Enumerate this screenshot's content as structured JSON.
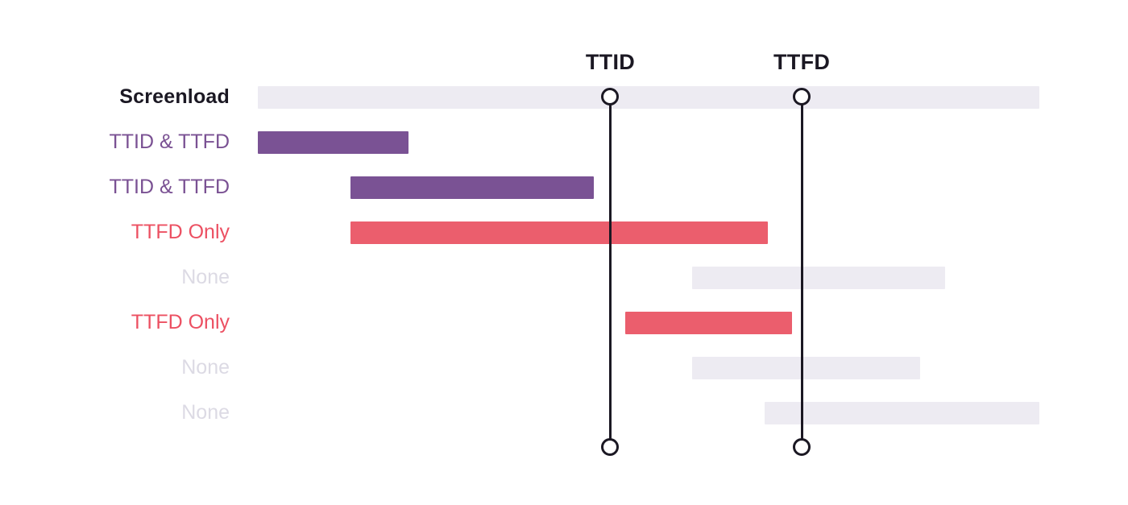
{
  "chart_data": {
    "type": "gantt",
    "title": "",
    "subtitle": "",
    "axis_visible": false,
    "grid": false,
    "unit": "percent_of_screenload_duration",
    "rows": [
      {
        "label": "Screenload",
        "kind": "screenload",
        "start": 0,
        "end": 100
      },
      {
        "label": "TTID & TTFD",
        "kind": "ttid_ttfd",
        "start": 0,
        "end": 19.3
      },
      {
        "label": "TTID & TTFD",
        "kind": "ttid_ttfd",
        "start": 11.9,
        "end": 43.0
      },
      {
        "label": "TTFD Only",
        "kind": "ttfd_only",
        "start": 11.9,
        "end": 65.3
      },
      {
        "label": "None",
        "kind": "none",
        "start": 55.6,
        "end": 87.9
      },
      {
        "label": "TTFD Only",
        "kind": "ttfd_only",
        "start": 47.0,
        "end": 68.4
      },
      {
        "label": "None",
        "kind": "none",
        "start": 55.6,
        "end": 84.7
      },
      {
        "label": "None",
        "kind": "none",
        "start": 64.8,
        "end": 100
      }
    ],
    "markers": [
      {
        "label": "TTID",
        "position": 45.1
      },
      {
        "label": "TTFD",
        "position": 69.6
      }
    ],
    "colors": {
      "background": "#ffffff",
      "screenload_bar": "#EDEBF2",
      "ttid_ttfd_bar": "#7A5294",
      "ttfd_only_bar": "#EB5E6D",
      "none_bar": "#EDEBF2",
      "screenload_label": "#1B1823",
      "ttid_ttfd_label": "#7A5193",
      "ttfd_only_label": "#EC5062",
      "none_label": "#DCDAE4",
      "marker_line": "#1B1823",
      "marker_label": "#1B1823",
      "marker_circle_fill": "#ffffff"
    }
  }
}
